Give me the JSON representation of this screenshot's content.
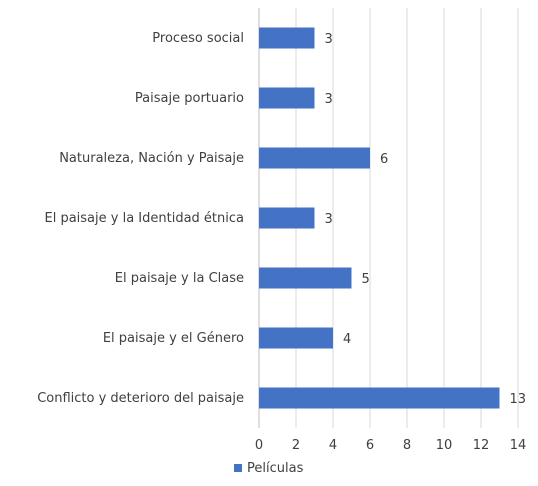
{
  "chart_data": {
    "type": "bar",
    "orientation": "horizontal",
    "categories": [
      "Proceso social",
      "Paisaje portuario",
      "Naturaleza, Nación y Paisaje",
      "El paisaje y la Identidad étnica",
      "El paisaje y la Clase",
      "El paisaje y el Género",
      "Conflicto y deterioro del paisaje"
    ],
    "series": [
      {
        "name": "Películas",
        "values": [
          3,
          3,
          6,
          3,
          5,
          4,
          13
        ],
        "color": "#4472C4"
      }
    ],
    "xlim": [
      0,
      14
    ],
    "xticks": [
      0,
      2,
      4,
      6,
      8,
      10,
      12,
      14
    ],
    "xlabel": "",
    "ylabel": "",
    "title": "",
    "grid": "vertical",
    "data_labels": true,
    "legend_position": "bottom-left"
  }
}
